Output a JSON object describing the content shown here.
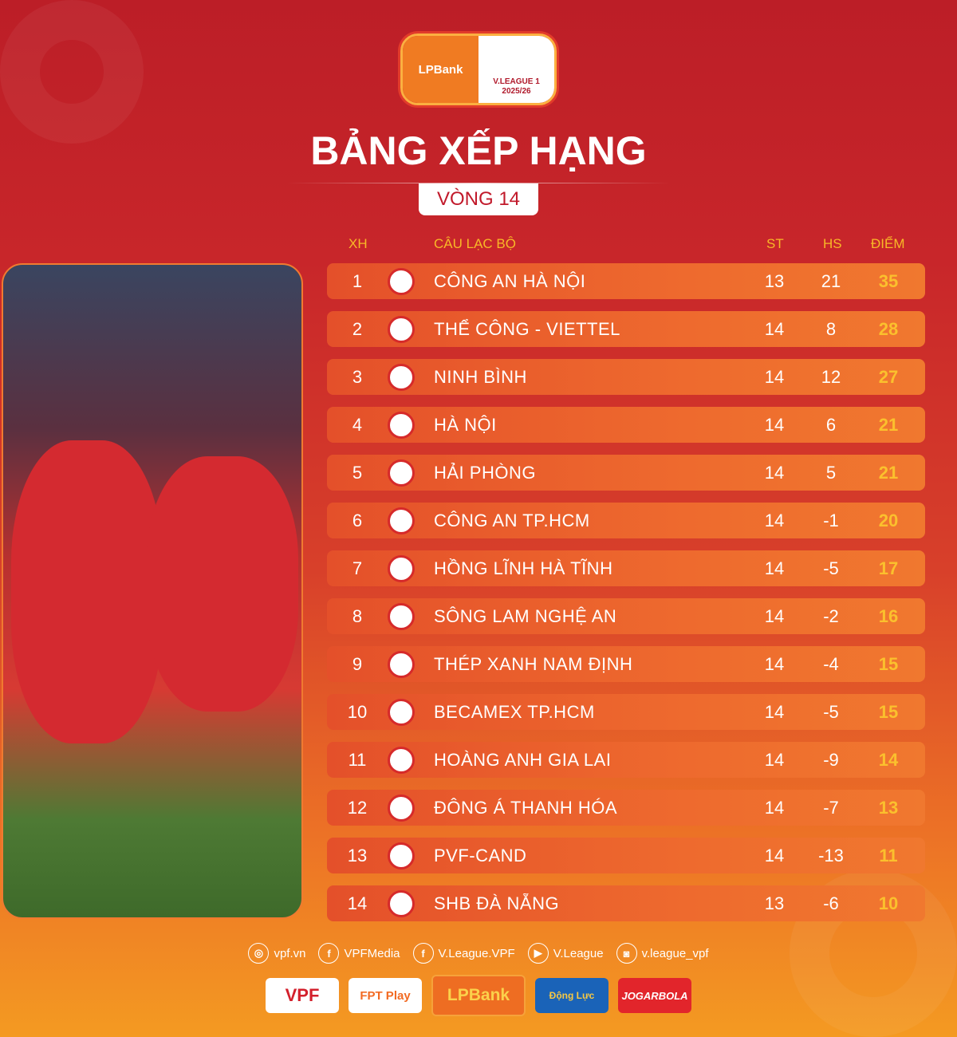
{
  "logo": {
    "sponsor": "LPBank",
    "league": "V.LEAGUE 1",
    "season": "2025/26"
  },
  "title": "BẢNG XẾP HẠNG",
  "round": "VÒNG 14",
  "headers": {
    "pos": "XH",
    "club": "CÂU LẠC BỘ",
    "played": "ST",
    "gd": "HS",
    "points": "ĐIỂM"
  },
  "rows": [
    {
      "pos": "1",
      "club": "CÔNG AN HÀ NỘI",
      "played": "13",
      "gd": "21",
      "points": "35"
    },
    {
      "pos": "2",
      "club": "THỂ CÔNG - VIETTEL",
      "played": "14",
      "gd": "8",
      "points": "28"
    },
    {
      "pos": "3",
      "club": "NINH BÌNH",
      "played": "14",
      "gd": "12",
      "points": "27"
    },
    {
      "pos": "4",
      "club": "HÀ NỘI",
      "played": "14",
      "gd": "6",
      "points": "21"
    },
    {
      "pos": "5",
      "club": "HẢI PHÒNG",
      "played": "14",
      "gd": "5",
      "points": "21"
    },
    {
      "pos": "6",
      "club": "CÔNG AN TP.HCM",
      "played": "14",
      "gd": "-1",
      "points": "20"
    },
    {
      "pos": "7",
      "club": "HỒNG LĨNH HÀ TĨNH",
      "played": "14",
      "gd": "-5",
      "points": "17"
    },
    {
      "pos": "8",
      "club": "SÔNG LAM NGHỆ AN",
      "played": "14",
      "gd": "-2",
      "points": "16"
    },
    {
      "pos": "9",
      "club": "THÉP XANH NAM ĐỊNH",
      "played": "14",
      "gd": "-4",
      "points": "15"
    },
    {
      "pos": "10",
      "club": "BECAMEX TP.HCM",
      "played": "14",
      "gd": "-5",
      "points": "15"
    },
    {
      "pos": "11",
      "club": "HOÀNG ANH GIA LAI",
      "played": "14",
      "gd": "-9",
      "points": "14"
    },
    {
      "pos": "12",
      "club": "ĐÔNG Á THANH HÓA",
      "played": "14",
      "gd": "-7",
      "points": "13"
    },
    {
      "pos": "13",
      "club": "PVF-CAND",
      "played": "14",
      "gd": "-13",
      "points": "11"
    },
    {
      "pos": "14",
      "club": "SHB ĐÀ NẴNG",
      "played": "13",
      "gd": "-6",
      "points": "10"
    }
  ],
  "socials": [
    {
      "icon": "globe-icon",
      "label": "vpf.vn"
    },
    {
      "icon": "facebook-icon",
      "label": "VPFMedia"
    },
    {
      "icon": "facebook-icon",
      "label": "V.League.VPF"
    },
    {
      "icon": "youtube-icon",
      "label": "V.League"
    },
    {
      "icon": "instagram-icon",
      "label": "v.league_vpf"
    }
  ],
  "sponsors": [
    "VPF",
    "FPT Play",
    "LPBank",
    "Động Lực",
    "JOGARBOLA"
  ],
  "colors": {
    "points": "#fbc02d",
    "header": "#f8b827",
    "row": "#ec632c"
  }
}
